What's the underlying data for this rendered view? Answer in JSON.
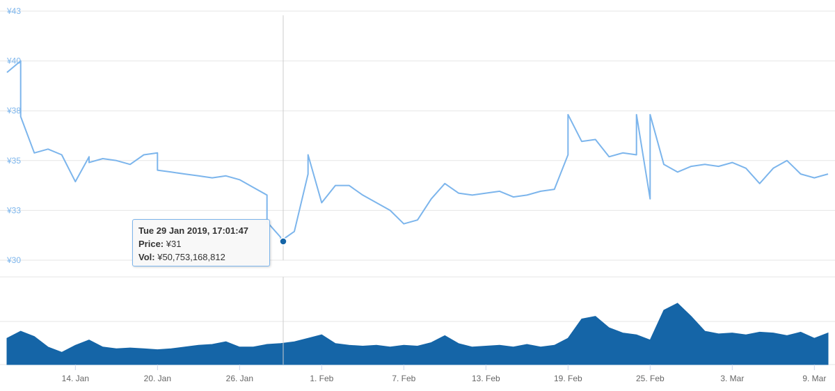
{
  "chart_data": [
    {
      "type": "line",
      "title": "",
      "xlabel": "",
      "ylabel": "",
      "ylim": [
        30,
        43
      ],
      "y_ticks": [
        "¥30",
        "¥33",
        "¥35",
        "¥38",
        "¥40",
        "¥43"
      ],
      "y_tick_values": [
        30,
        32.6,
        35.2,
        37.8,
        40.4,
        43
      ],
      "x_ticks": [
        "14. Jan",
        "20. Jan",
        "26. Jan",
        "1. Feb",
        "7. Feb",
        "13. Feb",
        "19. Feb",
        "25. Feb",
        "3. Mar",
        "9. Mar"
      ],
      "xlim": [
        "2019-01-09",
        "2019-03-10"
      ],
      "grid": true,
      "series": [
        {
          "color": "#7cb5ec",
          "x": [
            "2019-01-09",
            "2019-01-10",
            "2019-01-10",
            "2019-01-11",
            "2019-01-12",
            "2019-01-13",
            "2019-01-14",
            "2019-01-15",
            "2019-01-15",
            "2019-01-16",
            "2019-01-17",
            "2019-01-18",
            "2019-01-19",
            "2019-01-20",
            "2019-01-20",
            "2019-01-21",
            "2019-01-22",
            "2019-01-23",
            "2019-01-24",
            "2019-01-25",
            "2019-01-26",
            "2019-01-27",
            "2019-01-28",
            "2019-01-28",
            "2019-01-29",
            "2019-01-29",
            "2019-01-30",
            "2019-01-31",
            "2019-01-31",
            "2019-02-01",
            "2019-02-02",
            "2019-02-03",
            "2019-02-04",
            "2019-02-05",
            "2019-02-06",
            "2019-02-07",
            "2019-02-08",
            "2019-02-09",
            "2019-02-10",
            "2019-02-11",
            "2019-02-12",
            "2019-02-13",
            "2019-02-14",
            "2019-02-15",
            "2019-02-16",
            "2019-02-17",
            "2019-02-18",
            "2019-02-19",
            "2019-02-19",
            "2019-02-20",
            "2019-02-21",
            "2019-02-22",
            "2019-02-23",
            "2019-02-24",
            "2019-02-24",
            "2019-02-25",
            "2019-02-25",
            "2019-02-26",
            "2019-02-27",
            "2019-02-28",
            "2019-03-01",
            "2019-03-02",
            "2019-03-03",
            "2019-03-04",
            "2019-03-05",
            "2019-03-06",
            "2019-03-07",
            "2019-03-08",
            "2019-03-09",
            "2019-03-10"
          ],
          "y": [
            39.8,
            40.4,
            37.5,
            35.6,
            35.8,
            35.5,
            34.1,
            35.4,
            35.1,
            35.3,
            35.2,
            35.0,
            35.5,
            35.6,
            34.7,
            34.6,
            34.5,
            34.4,
            34.3,
            34.4,
            34.2,
            33.8,
            33.4,
            32.0,
            31.2,
            31.0,
            31.5,
            34.5,
            35.5,
            33.0,
            33.9,
            33.9,
            33.4,
            33.0,
            32.6,
            31.9,
            32.1,
            33.2,
            34.0,
            33.5,
            33.4,
            33.5,
            33.6,
            33.3,
            33.4,
            33.6,
            33.7,
            35.5,
            37.6,
            36.2,
            36.3,
            35.4,
            35.6,
            35.5,
            37.6,
            33.2,
            37.6,
            35.0,
            34.6,
            34.9,
            35.0,
            34.9,
            35.1,
            34.8,
            34.0,
            34.8,
            35.2,
            34.5,
            34.3,
            34.5
          ]
        }
      ]
    },
    {
      "type": "area",
      "title": "",
      "xlabel": "",
      "ylabel": "",
      "ylim": [
        0,
        100
      ],
      "grid": true,
      "series": [
        {
          "color": "#1565a7",
          "x": [
            "2019-01-09",
            "2019-01-10",
            "2019-01-11",
            "2019-01-12",
            "2019-01-13",
            "2019-01-14",
            "2019-01-15",
            "2019-01-16",
            "2019-01-17",
            "2019-01-18",
            "2019-01-19",
            "2019-01-20",
            "2019-01-21",
            "2019-01-22",
            "2019-01-23",
            "2019-01-24",
            "2019-01-25",
            "2019-01-26",
            "2019-01-27",
            "2019-01-28",
            "2019-01-29",
            "2019-01-30",
            "2019-01-31",
            "2019-02-01",
            "2019-02-02",
            "2019-02-03",
            "2019-02-04",
            "2019-02-05",
            "2019-02-06",
            "2019-02-07",
            "2019-02-08",
            "2019-02-09",
            "2019-02-10",
            "2019-02-11",
            "2019-02-12",
            "2019-02-13",
            "2019-02-14",
            "2019-02-15",
            "2019-02-16",
            "2019-02-17",
            "2019-02-18",
            "2019-02-19",
            "2019-02-20",
            "2019-02-21",
            "2019-02-22",
            "2019-02-23",
            "2019-02-24",
            "2019-02-25",
            "2019-02-26",
            "2019-02-27",
            "2019-02-28",
            "2019-03-01",
            "2019-03-02",
            "2019-03-03",
            "2019-03-04",
            "2019-03-05",
            "2019-03-06",
            "2019-03-07",
            "2019-03-08",
            "2019-03-09",
            "2019-03-10"
          ],
          "y": [
            30,
            38,
            32,
            20,
            14,
            22,
            28,
            20,
            18,
            19,
            18,
            17,
            18,
            20,
            22,
            23,
            26,
            20,
            20,
            23,
            24,
            26,
            30,
            34,
            24,
            22,
            21,
            22,
            20,
            22,
            21,
            25,
            33,
            24,
            20,
            21,
            22,
            20,
            23,
            20,
            22,
            30,
            52,
            55,
            42,
            36,
            34,
            28,
            62,
            70,
            55,
            38,
            35,
            36,
            34,
            37,
            36,
            33,
            37,
            30,
            36
          ]
        }
      ]
    }
  ],
  "tooltip": {
    "title": "Tue 29 Jan 2019, 17:01:47",
    "price_label": "Price:",
    "price_value": "¥31",
    "vol_label": "Vol:",
    "vol_value": "¥50,753,168,812"
  },
  "crosshair_date": "2019-01-29T17:01:47"
}
